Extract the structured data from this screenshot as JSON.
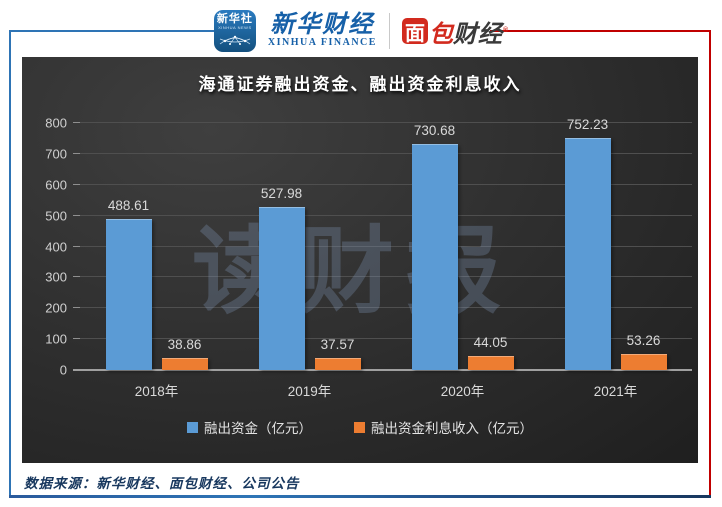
{
  "header": {
    "logo_xinhua_news": {
      "line1": "新华社",
      "line2": "XINHUA NEWS"
    },
    "logo_xinhua_finance": {
      "cn": "新华财经",
      "en": "XINHUA FINANCE"
    },
    "logo_mianbao": {
      "mian": "面",
      "bao": "包",
      "caijing": "财经",
      "reg": "®"
    }
  },
  "chart_data": {
    "type": "bar",
    "title": "海通证券融出资金、融出资金利息收入",
    "categories": [
      "2018年",
      "2019年",
      "2020年",
      "2021年"
    ],
    "series": [
      {
        "name": "融出资金（亿元）",
        "color": "#5B9BD5",
        "values": [
          488.61,
          527.98,
          730.68,
          752.23
        ]
      },
      {
        "name": "融出资金利息收入（亿元）",
        "color": "#ED7D31",
        "values": [
          38.86,
          37.57,
          44.05,
          53.26
        ]
      }
    ],
    "ylim": [
      0,
      800
    ],
    "ytick_step": 100,
    "grid": true,
    "legend_position": "bottom",
    "watermark": "读财报"
  },
  "footer": {
    "source": "数据来源：新华财经、面包财经、公司公告"
  },
  "colors": {
    "bar_blue": "#5B9BD5",
    "bar_orange": "#ED7D31",
    "frame_blue": "#2E74B5",
    "frame_red": "#C00000",
    "panel_dark": "#2e2e2e",
    "footer_navy": "#17375E",
    "mianbao_red": "#D22A1E",
    "xinhua_blue": "#1660a8"
  }
}
